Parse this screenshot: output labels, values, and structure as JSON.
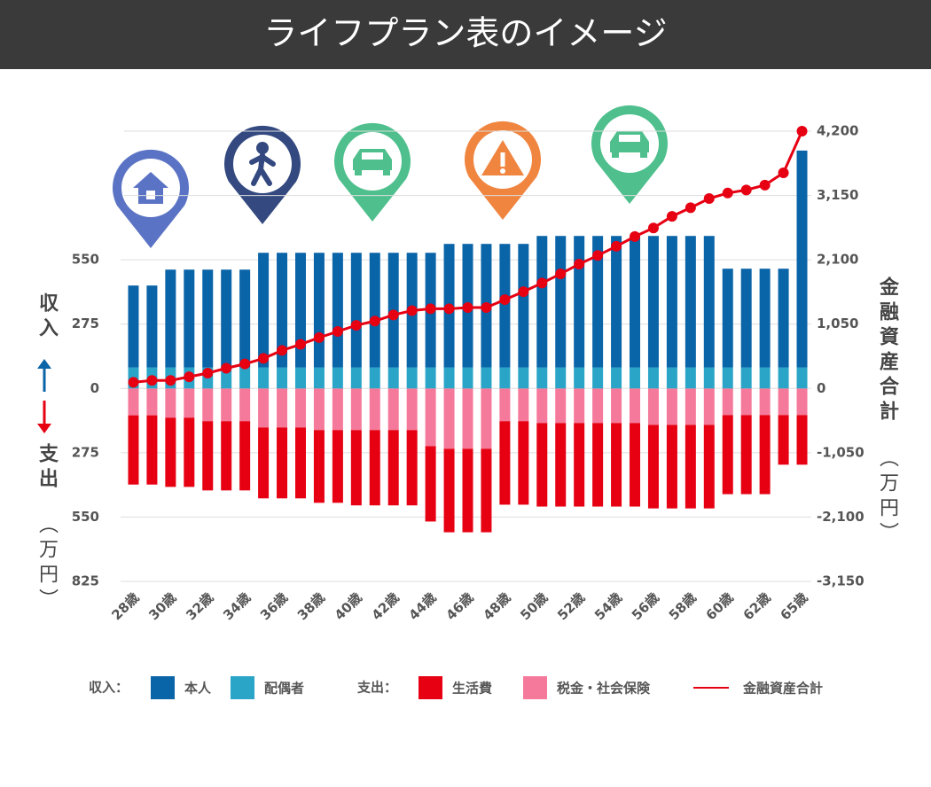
{
  "chart_data": {
    "type": "bar_line",
    "title": "ライフプラン表のイメージ",
    "categories": [
      "28歳",
      null,
      "30歳",
      null,
      "32歳",
      null,
      "34歳",
      null,
      "36歳",
      null,
      "38歳",
      null,
      "40歳",
      null,
      "42歳",
      null,
      "44歳",
      null,
      "46歳",
      null,
      "48歳",
      null,
      "50歳",
      null,
      "52歳",
      null,
      "54歳",
      null,
      "56歳",
      null,
      "58歳",
      null,
      "60歳",
      null,
      "62歳",
      null,
      "65歳"
    ],
    "series": [
      {
        "name": "本人",
        "color": "#0a64a8",
        "type": "bar",
        "values": [
          350,
          350,
          418,
          418,
          418,
          418,
          418,
          490,
          490,
          490,
          490,
          490,
          490,
          490,
          490,
          490,
          490,
          528,
          528,
          528,
          528,
          528,
          562,
          562,
          562,
          562,
          562,
          562,
          562,
          562,
          562,
          562,
          422,
          422,
          422,
          422,
          927
        ]
      },
      {
        "name": "配偶者",
        "color": "#2aa5c8",
        "type": "bar",
        "values": [
          90,
          90,
          90,
          90,
          90,
          90,
          90,
          90,
          90,
          90,
          90,
          90,
          90,
          90,
          90,
          90,
          90,
          90,
          90,
          90,
          90,
          90,
          90,
          90,
          90,
          90,
          90,
          90,
          90,
          90,
          90,
          90,
          90,
          90,
          90,
          90,
          90
        ]
      },
      {
        "name": "生活費",
        "color": "#e60012",
        "type": "bar",
        "values": [
          -296,
          -296,
          -296,
          -296,
          -296,
          -296,
          -296,
          -303,
          -303,
          -303,
          -311,
          -311,
          -322,
          -322,
          -322,
          -322,
          -322,
          -357,
          -357,
          -357,
          -357,
          -357,
          -357,
          -357,
          -357,
          -357,
          -357,
          -357,
          -357,
          -357,
          -357,
          -357,
          -338,
          -338,
          -338,
          -212,
          -212
        ]
      },
      {
        "name": "税金・社会保険",
        "color": "#f5799a",
        "type": "bar",
        "values": [
          -115,
          -115,
          -125,
          -125,
          -140,
          -140,
          -140,
          -167,
          -167,
          -167,
          -178,
          -178,
          -178,
          -178,
          -178,
          -178,
          -247,
          -258,
          -258,
          -258,
          -140,
          -140,
          -148,
          -148,
          -148,
          -148,
          -148,
          -148,
          -156,
          -156,
          -156,
          -156,
          -114,
          -114,
          -114,
          -114,
          -114
        ]
      },
      {
        "name": "金融資産合計",
        "color": "#e60012",
        "type": "line",
        "axis": "y2",
        "values": [
          100,
          130,
          130,
          190,
          250,
          330,
          400,
          490,
          620,
          720,
          830,
          930,
          1030,
          1100,
          1200,
          1270,
          1300,
          1300,
          1320,
          1320,
          1450,
          1580,
          1720,
          1870,
          2030,
          2170,
          2320,
          2480,
          2620,
          2810,
          2950,
          3100,
          3190,
          3240,
          3320,
          3520,
          4200
        ]
      }
    ],
    "ylim": [
      -825,
      1100
    ],
    "yticks": [
      550,
      275,
      0,
      {
        "value": -275,
        "label": "275"
      },
      {
        "value": -550,
        "label": "550"
      },
      {
        "value": -825,
        "label": "825"
      }
    ],
    "y2lim": [
      -3150,
      4200
    ],
    "y2ticks": [
      {
        "value": 4200,
        "label": "4,200"
      },
      {
        "value": 3150,
        "label": "3,150"
      },
      {
        "value": 2100,
        "label": "2,100"
      },
      {
        "value": 1050,
        "label": "1,050"
      },
      0,
      {
        "value": -1050,
        "label": "-1,050"
      },
      {
        "value": -2100,
        "label": "-2,100"
      },
      {
        "value": -3150,
        "label": "-3,150"
      }
    ],
    "grid": true,
    "ylabel_top": "収入",
    "ylabel_bottom": "支出",
    "ylabel_unit": "（万円）",
    "y2label": "金融資産合計",
    "y2label_unit": "（万円）",
    "legend_income_label": "収入：",
    "legend_expense_label": "支出："
  }
}
